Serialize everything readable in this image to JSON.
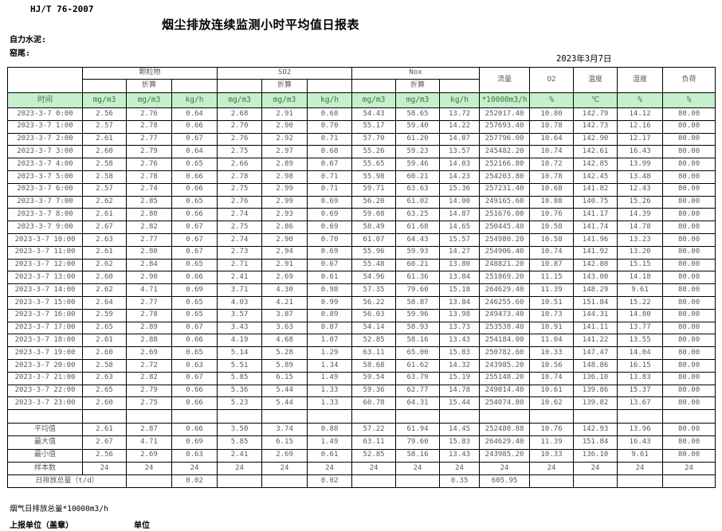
{
  "page": {
    "doc_code": "HJ/T  76-2007",
    "title": "烟尘排放连续监测小时平均值日报表",
    "company": "自力水泥:",
    "location": "窑尾:",
    "date": "2023年3月7日"
  },
  "table": {
    "time_header": "时间",
    "groups": [
      "颗粒物",
      "SO2",
      "Nox"
    ],
    "converted_label": "折算",
    "single_headers": [
      "流量",
      "O2",
      "温度",
      "湿度",
      "负荷"
    ],
    "unit_row": [
      "时间",
      "mg/m3",
      "mg/m3",
      "kg/h",
      "mg/m3",
      "mg/m3",
      "kg/h",
      "mg/m3",
      "mg/m3",
      "kg/h",
      "*10000m3/h",
      "%",
      "℃",
      "%",
      "%"
    ],
    "rows": [
      [
        "2023-3-7 0:00",
        "2.56",
        "2.76",
        "0.64",
        "2.68",
        "2.91",
        "0.68",
        "54.43",
        "58.65",
        "13.72",
        "252017.40",
        "10.80",
        "142.79",
        "14.12",
        "80.00"
      ],
      [
        "2023-3-7 1:00",
        "2.57",
        "2.78",
        "0.66",
        "2.70",
        "2.90",
        "0.70",
        "55.17",
        "59.40",
        "14.22",
        "257693.40",
        "10.78",
        "142.73",
        "12.16",
        "80.00"
      ],
      [
        "2023-3-7 2:00",
        "2.61",
        "2.77",
        "0.67",
        "2.76",
        "2.92",
        "0.71",
        "57.70",
        "61.20",
        "14.87",
        "257796.00",
        "10.64",
        "142.90",
        "12.17",
        "80.00"
      ],
      [
        "2023-3-7 3:00",
        "2.60",
        "2.79",
        "0.64",
        "2.75",
        "2.97",
        "0.68",
        "55.26",
        "59.23",
        "13.57",
        "245482.20",
        "10.74",
        "142.61",
        "16.43",
        "80.00"
      ],
      [
        "2023-3-7 4:00",
        "2.58",
        "2.76",
        "0.65",
        "2.66",
        "2.89",
        "0.67",
        "55.65",
        "59.46",
        "14.03",
        "252166.80",
        "10.72",
        "142.85",
        "13.99",
        "80.00"
      ],
      [
        "2023-3-7 5:00",
        "2.58",
        "2.78",
        "0.66",
        "2.78",
        "2.98",
        "0.71",
        "55.98",
        "60.21",
        "14.23",
        "254203.80",
        "10.78",
        "142.45",
        "13.48",
        "80.00"
      ],
      [
        "2023-3-7 6:00",
        "2.57",
        "2.74",
        "0.66",
        "2.75",
        "2.99",
        "0.71",
        "59.71",
        "63.63",
        "15.36",
        "257231.40",
        "10.68",
        "141.82",
        "12.43",
        "80.00"
      ],
      [
        "2023-3-7 7:00",
        "2.62",
        "2.85",
        "0.65",
        "2.76",
        "2.99",
        "0.69",
        "56.20",
        "61.02",
        "14.00",
        "249165.60",
        "10.88",
        "140.75",
        "15.26",
        "80.00"
      ],
      [
        "2023-3-7 8:00",
        "2.61",
        "2.80",
        "0.66",
        "2.74",
        "2.93",
        "0.69",
        "59.08",
        "63.25",
        "14.87",
        "251676.00",
        "10.76",
        "141.17",
        "14.39",
        "80.00"
      ],
      [
        "2023-3-7 9:00",
        "2.67",
        "2.82",
        "0.67",
        "2.75",
        "2.86",
        "0.69",
        "58.49",
        "61.68",
        "14.65",
        "250445.40",
        "10.58",
        "141.74",
        "14.78",
        "80.00"
      ],
      [
        "2023-3-7 10:00",
        "2.63",
        "2.77",
        "0.67",
        "2.74",
        "2.90",
        "0.70",
        "61.07",
        "64.43",
        "15.57",
        "254980.20",
        "10.58",
        "141.96",
        "13.23",
        "80.00"
      ],
      [
        "2023-3-7 11:00",
        "2.61",
        "2.80",
        "0.67",
        "2.73",
        "2.94",
        "0.69",
        "55.96",
        "59.93",
        "14.27",
        "254906.40",
        "10.74",
        "141.92",
        "13.20",
        "80.00"
      ],
      [
        "2023-3-7 12:00",
        "2.62",
        "2.84",
        "0.65",
        "2.71",
        "2.91",
        "0.67",
        "55.48",
        "60.21",
        "13.80",
        "248821.20",
        "10.87",
        "142.80",
        "15.15",
        "80.00"
      ],
      [
        "2023-3-7 13:00",
        "2.60",
        "2.90",
        "0.66",
        "2.41",
        "2.69",
        "0.61",
        "54.96",
        "61.36",
        "13.84",
        "251869.20",
        "11.15",
        "143.00",
        "14.18",
        "80.00"
      ],
      [
        "2023-3-7 14:00",
        "2.62",
        "4.71",
        "0.69",
        "3.71",
        "4.30",
        "0.98",
        "57.35",
        "79.60",
        "15.18",
        "264629.40",
        "11.39",
        "148.29",
        "9.61",
        "80.00"
      ],
      [
        "2023-3-7 15:00",
        "2.64",
        "2.77",
        "0.65",
        "4.03",
        "4.21",
        "0.99",
        "56.22",
        "58.87",
        "13.84",
        "246255.60",
        "10.51",
        "151.84",
        "15.22",
        "80.00"
      ],
      [
        "2023-3-7 16:00",
        "2.59",
        "2.78",
        "0.65",
        "3.57",
        "3.87",
        "0.89",
        "56.03",
        "59.96",
        "13.98",
        "249473.40",
        "10.73",
        "144.31",
        "14.80",
        "80.00"
      ],
      [
        "2023-3-7 17:00",
        "2.65",
        "2.89",
        "0.67",
        "3.43",
        "3.63",
        "0.87",
        "54.14",
        "58.93",
        "13.73",
        "253538.40",
        "10.91",
        "141.11",
        "13.77",
        "80.00"
      ],
      [
        "2023-3-7 18:00",
        "2.61",
        "2.88",
        "0.66",
        "4.19",
        "4.68",
        "1.07",
        "52.85",
        "58.16",
        "13.43",
        "254184.00",
        "11.04",
        "141.22",
        "13.55",
        "80.00"
      ],
      [
        "2023-3-7 19:00",
        "2.60",
        "2.69",
        "0.65",
        "5.14",
        "5.28",
        "1.29",
        "63.11",
        "65.00",
        "15.83",
        "250782.60",
        "10.33",
        "147.47",
        "14.04",
        "80.00"
      ],
      [
        "2023-3-7 20:00",
        "2.58",
        "2.72",
        "0.63",
        "5.51",
        "5.89",
        "1.34",
        "58.68",
        "61.62",
        "14.32",
        "243985.20",
        "10.56",
        "148.86",
        "16.15",
        "80.00"
      ],
      [
        "2023-3-7 21:00",
        "2.63",
        "2.82",
        "0.67",
        "5.85",
        "6.15",
        "1.49",
        "59.54",
        "63.79",
        "15.19",
        "255148.20",
        "10.74",
        "136.10",
        "13.83",
        "80.00"
      ],
      [
        "2023-3-7 22:00",
        "2.65",
        "2.79",
        "0.66",
        "5.36",
        "5.44",
        "1.33",
        "59.36",
        "62.77",
        "14.78",
        "249014.40",
        "10.61",
        "139.86",
        "15.37",
        "80.00"
      ],
      [
        "2023-3-7 23:00",
        "2.60",
        "2.75",
        "0.66",
        "5.23",
        "5.44",
        "1.33",
        "60.78",
        "64.31",
        "15.44",
        "254074.80",
        "10.62",
        "139.82",
        "13.67",
        "80.00"
      ]
    ],
    "summary": [
      {
        "label": "平均值",
        "values": [
          "2.61",
          "2.87",
          "0.66",
          "3.50",
          "3.74",
          "0.88",
          "57.22",
          "61.94",
          "14.45",
          "252480.88",
          "10.76",
          "142.93",
          "13.96",
          "80.00"
        ]
      },
      {
        "label": "最大值",
        "values": [
          "2.67",
          "4.71",
          "0.69",
          "5.85",
          "6.15",
          "1.49",
          "63.11",
          "79.60",
          "15.83",
          "264629.40",
          "11.39",
          "151.84",
          "16.43",
          "80.00"
        ]
      },
      {
        "label": "最小值",
        "values": [
          "2.56",
          "2.69",
          "0.63",
          "2.41",
          "2.69",
          "0.61",
          "52.85",
          "58.16",
          "13.43",
          "243985.20",
          "10.33",
          "136.10",
          "9.61",
          "80.00"
        ]
      },
      {
        "label": "样本数",
        "values": [
          "24",
          "24",
          "24",
          "24",
          "24",
          "24",
          "24",
          "24",
          "24",
          "24",
          "24",
          "24",
          "24",
          "24"
        ]
      }
    ],
    "daily_total": {
      "label": "日排放总量（t/d）",
      "values": [
        "",
        "0.02",
        "",
        "",
        "0.02",
        "",
        "",
        "0.35",
        "605.95",
        "",
        "",
        "",
        ""
      ]
    }
  },
  "footer": {
    "flow_note": "烟气日排放总量*10000m3/h",
    "report_org": "上报单位（盖章）",
    "unit_label": "单位"
  }
}
